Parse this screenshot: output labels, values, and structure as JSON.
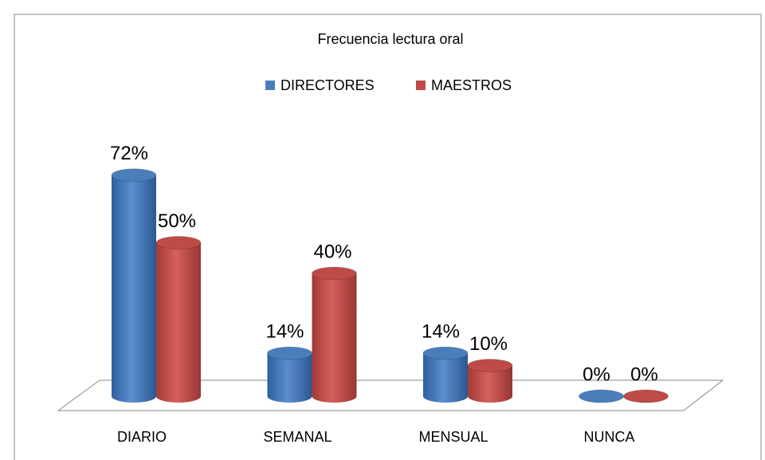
{
  "chart_data": {
    "type": "bar",
    "title": "Frecuencia lectura oral",
    "categories": [
      "DIARIO",
      "SEMANAL",
      "MENSUAL",
      "NUNCA"
    ],
    "series": [
      {
        "name": "DIRECTORES",
        "color": "#4a7ebb",
        "values": [
          72,
          14,
          14,
          0
        ],
        "value_labels": [
          "72%",
          "14%",
          "14%",
          "0%"
        ]
      },
      {
        "name": "MAESTROS",
        "color": "#be4b48",
        "values": [
          50,
          40,
          10,
          0
        ],
        "value_labels": [
          "50%",
          "40%",
          "10%",
          "0%"
        ]
      }
    ],
    "legend": "top"
  }
}
